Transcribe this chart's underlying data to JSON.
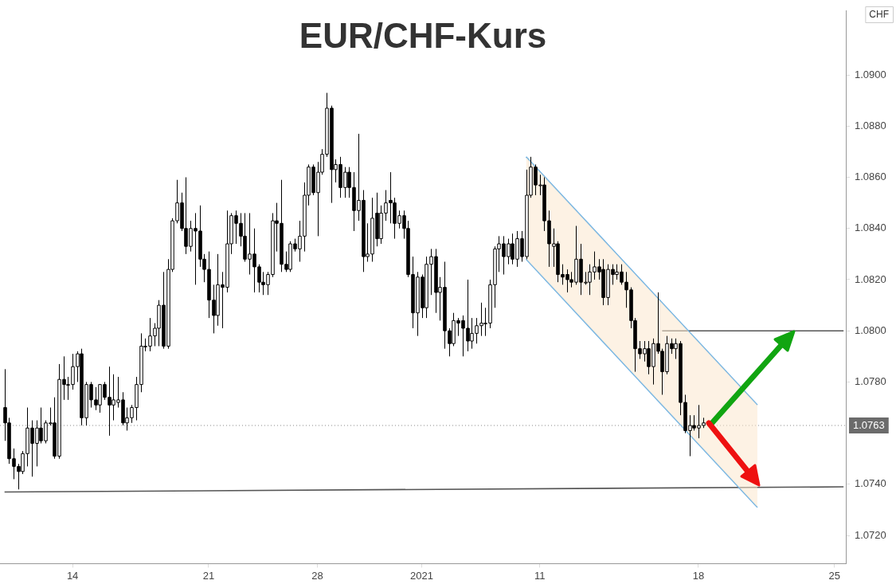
{
  "chart_data": {
    "type": "candlestick",
    "title": "EUR/CHF-Kurs",
    "categories": [
      null,
      null,
      null,
      null,
      null,
      null,
      null,
      null,
      null,
      null,
      null,
      null,
      null,
      null,
      null,
      "14",
      null,
      null,
      null,
      null,
      null,
      null,
      null,
      null,
      null,
      null,
      null,
      null,
      null,
      null,
      null,
      null,
      null,
      null,
      null,
      null,
      null,
      null,
      null,
      null,
      null,
      null,
      null,
      null,
      null,
      "21",
      null,
      null,
      null,
      null,
      null,
      null,
      null,
      null,
      null,
      null,
      null,
      null,
      null,
      null,
      null,
      null,
      null,
      null,
      null,
      null,
      null,
      null,
      null,
      "28",
      null,
      null,
      null,
      null,
      null,
      null,
      null,
      null,
      null,
      null,
      null,
      null,
      null,
      null,
      null,
      null,
      null,
      null,
      null,
      null,
      null,
      null,
      "2021",
      null,
      null,
      null,
      null,
      null,
      null,
      null,
      null,
      null,
      null,
      null,
      null,
      null,
      null,
      null,
      null,
      null,
      null,
      null,
      null,
      null,
      null,
      null,
      null,
      null,
      "11",
      null,
      null,
      null,
      null,
      null,
      null,
      null,
      null,
      null,
      null,
      null,
      null,
      null,
      null,
      null,
      null,
      null,
      null,
      null,
      null,
      null,
      null,
      null,
      null,
      null,
      null,
      null,
      null,
      null,
      null,
      null,
      null,
      null,
      null,
      "18",
      null,
      null,
      null,
      null,
      null,
      null,
      null,
      null,
      null,
      null,
      null,
      null,
      null,
      null,
      null,
      null,
      null,
      null,
      null,
      null,
      null,
      null,
      null,
      null,
      null,
      null,
      null,
      null,
      null,
      "25",
      null,
      null
    ],
    "ohlc": [
      [
        1.077,
        1.0785,
        1.0757,
        1.0764
      ],
      [
        1.0764,
        1.0766,
        1.0748,
        1.075
      ],
      [
        1.075,
        1.0754,
        1.0742,
        1.0747
      ],
      [
        1.0747,
        1.0748,
        1.0738,
        1.0745
      ],
      [
        1.0745,
        1.0753,
        1.0744,
        1.0752
      ],
      [
        1.0752,
        1.077,
        1.0747,
        1.0762
      ],
      [
        1.0762,
        1.0765,
        1.0743,
        1.0756
      ],
      [
        1.0756,
        1.0765,
        1.0747,
        1.0762
      ],
      [
        1.0762,
        1.077,
        1.0756,
        1.0757
      ],
      [
        1.0757,
        1.0765,
        1.0756,
        1.0764
      ],
      [
        1.0764,
        1.077,
        1.0763,
        1.0764
      ],
      [
        1.0764,
        1.0774,
        1.075,
        1.0751
      ],
      [
        1.0751,
        1.0787,
        1.075,
        1.0781
      ],
      [
        1.0781,
        1.079,
        1.0773,
        1.0779
      ],
      [
        1.0779,
        1.0782,
        1.0773,
        1.0779
      ],
      [
        1.0779,
        1.0791,
        1.0777,
        1.0786
      ],
      [
        1.0786,
        1.0792,
        1.078,
        1.0791
      ],
      [
        1.0791,
        1.0793,
        1.0763,
        1.0766
      ],
      [
        1.0766,
        1.078,
        1.0763,
        1.0779
      ],
      [
        1.0779,
        1.078,
        1.077,
        1.0773
      ],
      [
        1.0773,
        1.0778,
        1.0769,
        1.0771
      ],
      [
        1.0771,
        1.0779,
        1.0768,
        1.0779
      ],
      [
        1.0779,
        1.078,
        1.0773,
        1.0774
      ],
      [
        1.0774,
        1.0786,
        1.0759,
        1.0771
      ],
      [
        1.0771,
        1.0783,
        1.0765,
        1.0773
      ],
      [
        1.0772,
        1.0782,
        1.077,
        1.0773
      ],
      [
        1.0773,
        1.0776,
        1.0763,
        1.0764
      ],
      [
        1.0764,
        1.077,
        1.0761,
        1.0766
      ],
      [
        1.0766,
        1.0771,
        1.0764,
        1.077
      ],
      [
        1.077,
        1.0782,
        1.0765,
        1.0779
      ],
      [
        1.0779,
        1.0799,
        1.0776,
        1.0794
      ],
      [
        1.0794,
        1.0797,
        1.0792,
        1.0794
      ],
      [
        1.0794,
        1.0805,
        1.0792,
        1.0798
      ],
      [
        1.0798,
        1.0803,
        1.0794,
        1.0801
      ],
      [
        1.0801,
        1.0812,
        1.0794,
        1.081
      ],
      [
        1.081,
        1.0823,
        1.0793,
        1.0794
      ],
      [
        1.0794,
        1.0828,
        1.0793,
        1.0824
      ],
      [
        1.0824,
        1.0844,
        1.0823,
        1.0843
      ],
      [
        1.0843,
        1.0859,
        1.0842,
        1.085
      ],
      [
        1.085,
        1.0854,
        1.0839,
        1.084
      ],
      [
        1.084,
        1.086,
        1.083,
        1.0833
      ],
      [
        1.0833,
        1.0843,
        1.0831,
        1.084
      ],
      [
        1.084,
        1.0846,
        1.0818,
        1.0839
      ],
      [
        1.0839,
        1.0849,
        1.0825,
        1.0828
      ],
      [
        1.0828,
        1.083,
        1.0819,
        1.0824
      ],
      [
        1.0824,
        1.0831,
        1.0805,
        1.0812
      ],
      [
        1.0812,
        1.0818,
        1.0799,
        1.0806
      ],
      [
        1.0806,
        1.083,
        1.0802,
        1.0818
      ],
      [
        1.0818,
        1.0823,
        1.0801,
        1.0817
      ],
      [
        1.0817,
        1.0847,
        1.0815,
        1.0834
      ],
      [
        1.0834,
        1.0846,
        1.083,
        1.0845
      ],
      [
        1.0845,
        1.0847,
        1.0834,
        1.0842
      ],
      [
        1.0842,
        1.0846,
        1.0833,
        1.0837
      ],
      [
        1.0837,
        1.0846,
        1.0827,
        1.0828
      ],
      [
        1.0828,
        1.0846,
        1.0822,
        1.083
      ],
      [
        1.083,
        1.084,
        1.0815,
        1.0825
      ],
      [
        1.0825,
        1.0826,
        1.0815,
        1.0819
      ],
      [
        1.0819,
        1.0823,
        1.0814,
        1.0818
      ],
      [
        1.0818,
        1.0823,
        1.0814,
        1.0822
      ],
      [
        1.0822,
        1.0846,
        1.0821,
        1.0843
      ],
      [
        1.0843,
        1.085,
        1.0831,
        1.0842
      ],
      [
        1.0842,
        1.0859,
        1.0823,
        1.0826
      ],
      [
        1.0826,
        1.0831,
        1.0823,
        1.0824
      ],
      [
        1.0824,
        1.0835,
        1.0823,
        1.0834
      ],
      [
        1.0834,
        1.0836,
        1.0831,
        1.0832
      ],
      [
        1.0832,
        1.0843,
        1.0827,
        1.0837
      ],
      [
        1.0837,
        1.0858,
        1.0831,
        1.0853
      ],
      [
        1.0853,
        1.0865,
        1.0849,
        1.0864
      ],
      [
        1.0864,
        1.0865,
        1.0853,
        1.0854
      ],
      [
        1.0854,
        1.0866,
        1.0837,
        1.0862
      ],
      [
        1.0862,
        1.0871,
        1.0861,
        1.0869
      ],
      [
        1.0869,
        1.0893,
        1.0868,
        1.0887
      ],
      [
        1.0887,
        1.0888,
        1.085,
        1.0863
      ],
      [
        1.0863,
        1.0867,
        1.0858,
        1.0865
      ],
      [
        1.0865,
        1.0868,
        1.0852,
        1.0856
      ],
      [
        1.0856,
        1.0864,
        1.0852,
        1.0862
      ],
      [
        1.0862,
        1.0864,
        1.0852,
        1.0856
      ],
      [
        1.0856,
        1.0862,
        1.0839,
        1.0847
      ],
      [
        1.0847,
        1.0877,
        1.0843,
        1.0851
      ],
      [
        1.0851,
        1.0855,
        1.0823,
        1.0829
      ],
      [
        1.0829,
        1.0842,
        1.0827,
        1.083
      ],
      [
        1.083,
        1.0852,
        1.0827,
        1.0844
      ],
      [
        1.0846,
        1.0854,
        1.0833,
        1.0836
      ],
      [
        1.0836,
        1.0849,
        1.0834,
        1.0846
      ],
      [
        1.0846,
        1.0855,
        1.0843,
        1.085
      ],
      [
        1.0851,
        1.0862,
        1.0842,
        1.085
      ],
      [
        1.085,
        1.0852,
        1.0836,
        1.0842
      ],
      [
        1.0842,
        1.0847,
        1.084,
        1.0845
      ],
      [
        1.0845,
        1.0847,
        1.0836,
        1.084
      ],
      [
        1.084,
        1.0843,
        1.0821,
        1.0822
      ],
      [
        1.0822,
        1.0829,
        1.0801,
        1.0807
      ],
      [
        1.0807,
        1.0823,
        1.0798,
        1.0821
      ],
      [
        1.0821,
        1.0822,
        1.0805,
        1.0809
      ],
      [
        1.0809,
        1.0829,
        1.0805,
        1.0826
      ],
      [
        1.0826,
        1.0832,
        1.0814,
        1.0829
      ],
      [
        1.0829,
        1.0832,
        1.0807,
        1.0815
      ],
      [
        1.0815,
        1.0821,
        1.0804,
        1.0817
      ],
      [
        1.0817,
        1.0827,
        1.0793,
        1.08
      ],
      [
        1.08,
        1.0801,
        1.079,
        1.0795
      ],
      [
        1.0795,
        1.0807,
        1.0794,
        1.0804
      ],
      [
        1.0804,
        1.0805,
        1.0798,
        1.0803
      ],
      [
        1.0804,
        1.0806,
        1.079,
        1.0801
      ],
      [
        1.0801,
        1.082,
        1.0792,
        1.0796
      ],
      [
        1.0796,
        1.0805,
        1.0793,
        1.0799
      ],
      [
        1.0799,
        1.0805,
        1.0795,
        1.0802
      ],
      [
        1.0802,
        1.0811,
        1.0798,
        1.0803
      ],
      [
        1.0803,
        1.0809,
        1.0798,
        1.0803
      ],
      [
        1.0803,
        1.082,
        1.0801,
        1.0818
      ],
      [
        1.0818,
        1.0833,
        1.0809,
        1.0832
      ],
      [
        1.0832,
        1.0837,
        1.0823,
        1.0834
      ],
      [
        1.0834,
        1.0837,
        1.0822,
        1.0829
      ],
      [
        1.0829,
        1.0836,
        1.0826,
        1.0834
      ],
      [
        1.0834,
        1.0838,
        1.0826,
        1.0828
      ],
      [
        1.0828,
        1.0839,
        1.0825,
        1.0836
      ],
      [
        1.0836,
        1.0839,
        1.0827,
        1.0829
      ],
      [
        1.0829,
        1.0863,
        1.0828,
        1.0853
      ],
      [
        1.0853,
        1.0868,
        1.0852,
        1.0864
      ],
      [
        1.0864,
        1.0865,
        1.0853,
        1.0857
      ],
      [
        1.0857,
        1.0861,
        1.0853,
        1.0857
      ],
      [
        1.0857,
        1.086,
        1.0839,
        1.0843
      ],
      [
        1.0843,
        1.0847,
        1.0825,
        1.0834
      ],
      [
        1.0833,
        1.084,
        1.0825,
        1.0834
      ],
      [
        1.0834,
        1.0835,
        1.0819,
        1.0822
      ],
      [
        1.0822,
        1.0826,
        1.0818,
        1.0821
      ],
      [
        1.0822,
        1.0824,
        1.0815,
        1.082
      ],
      [
        1.082,
        1.0823,
        1.0817,
        1.0819
      ],
      [
        1.0819,
        1.0841,
        1.0818,
        1.0828
      ],
      [
        1.0828,
        1.0834,
        1.0814,
        1.0819
      ],
      [
        1.0819,
        1.0823,
        1.0818,
        1.0819
      ],
      [
        1.0819,
        1.0826,
        1.0814,
        1.0823
      ],
      [
        1.0823,
        1.0831,
        1.082,
        1.0825
      ],
      [
        1.0825,
        1.0828,
        1.082,
        1.0823
      ],
      [
        1.0824,
        1.0828,
        1.081,
        1.0813
      ],
      [
        1.0813,
        1.0826,
        1.081,
        1.0824
      ],
      [
        1.0824,
        1.0826,
        1.0818,
        1.0822
      ],
      [
        1.0822,
        1.0826,
        1.082,
        1.0823
      ],
      [
        1.0823,
        1.0826,
        1.0818,
        1.0819
      ],
      [
        1.0819,
        1.0823,
        1.0809,
        1.0816
      ],
      [
        1.0816,
        1.0817,
        1.0801,
        1.0804
      ],
      [
        1.0804,
        1.0805,
        1.0784,
        1.0793
      ],
      [
        1.0793,
        1.0796,
        1.0789,
        1.0791
      ],
      [
        1.0791,
        1.0796,
        1.0788,
        1.0793
      ],
      [
        1.0793,
        1.0796,
        1.0783,
        1.0786
      ],
      [
        1.0786,
        1.0797,
        1.0779,
        1.0795
      ],
      [
        1.0795,
        1.0815,
        1.0791,
        1.0792
      ],
      [
        1.0792,
        1.0793,
        1.0775,
        1.0784
      ],
      [
        1.0784,
        1.0798,
        1.0783,
        1.0795
      ],
      [
        1.0795,
        1.0797,
        1.0791,
        1.0793
      ],
      [
        1.0793,
        1.0797,
        1.0789,
        1.0795
      ],
      [
        1.0795,
        1.0796,
        1.0767,
        1.0772
      ],
      [
        1.0772,
        1.0775,
        1.076,
        1.0761
      ],
      [
        1.0761,
        1.0767,
        1.0751,
        1.0763
      ],
      [
        1.0763,
        1.0767,
        1.0761,
        1.0762
      ],
      [
        1.0762,
        1.0771,
        1.0758,
        1.0763
      ],
      [
        1.0763,
        1.0766,
        1.0762,
        1.0764
      ],
      null,
      null,
      null,
      null,
      null,
      null,
      null,
      null,
      null,
      null,
      null,
      null,
      null,
      null,
      null,
      null,
      null,
      null,
      null,
      null,
      null,
      null,
      null,
      null,
      null,
      null,
      null,
      null,
      null,
      null,
      null
    ],
    "series": [
      {
        "type": "line",
        "color": "#5aaae6",
        "values": [
          null,
          null,
          null,
          null,
          null,
          null,
          null,
          null,
          null,
          null,
          null,
          null,
          null,
          null,
          null,
          null,
          null,
          null,
          null,
          null,
          null,
          null,
          null,
          null,
          null,
          null,
          null,
          null,
          null,
          null,
          null,
          null,
          null,
          null,
          null,
          null,
          null,
          null,
          null,
          null,
          null,
          null,
          null,
          null,
          null,
          null,
          null,
          null,
          null,
          null,
          null,
          null,
          null,
          null,
          null,
          null,
          null,
          null,
          null,
          null,
          null,
          null,
          null,
          null,
          null,
          null,
          null,
          null,
          null,
          null,
          null,
          null,
          null,
          null,
          null,
          null,
          null,
          null,
          null,
          null,
          null,
          null,
          null,
          null,
          null,
          null,
          null,
          null,
          null,
          null,
          null,
          null,
          null,
          null,
          null,
          null,
          null,
          null,
          null,
          null,
          null,
          null,
          null,
          null,
          null,
          null,
          null,
          null,
          null,
          null,
          null,
          null,
          null,
          null,
          null,
          1.0868,
          null,
          null,
          null,
          null,
          null,
          null,
          null,
          null,
          null,
          null,
          null,
          null,
          null,
          null,
          null,
          null,
          null,
          null,
          null,
          null,
          null,
          null,
          null,
          null,
          null,
          null,
          null,
          null,
          null,
          null,
          null,
          null,
          null,
          null,
          null,
          null,
          null,
          null,
          null,
          null,
          null,
          null,
          null,
          null,
          null,
          null,
          null,
          null,
          null,
          null,
          1.0771,
          null,
          null,
          null,
          null,
          null,
          null,
          null,
          null,
          null,
          null,
          null,
          null,
          null,
          null,
          null,
          null,
          null,
          null,
          null
        ],
        "lower": [
          null,
          null,
          null,
          null,
          null,
          null,
          null,
          null,
          null,
          null,
          null,
          null,
          null,
          null,
          null,
          null,
          null,
          null,
          null,
          null,
          null,
          null,
          null,
          null,
          null,
          null,
          null,
          null,
          null,
          null,
          null,
          null,
          null,
          null,
          null,
          null,
          null,
          null,
          null,
          null,
          null,
          null,
          null,
          null,
          null,
          null,
          null,
          null,
          null,
          null,
          null,
          null,
          null,
          null,
          null,
          null,
          null,
          null,
          null,
          null,
          null,
          null,
          null,
          null,
          null,
          null,
          null,
          null,
          null,
          null,
          null,
          null,
          null,
          null,
          null,
          null,
          null,
          null,
          null,
          null,
          null,
          null,
          null,
          null,
          null,
          null,
          null,
          null,
          null,
          null,
          null,
          null,
          null,
          null,
          null,
          null,
          null,
          null,
          null,
          null,
          null,
          null,
          null,
          null,
          null,
          null,
          null,
          null,
          null,
          null,
          null,
          null,
          null,
          null,
          null,
          1.0828,
          null,
          null,
          null,
          null,
          null,
          null,
          null,
          null,
          null,
          null,
          null,
          null,
          null,
          null,
          null,
          null,
          null,
          null,
          null,
          null,
          null,
          null,
          null,
          null,
          null,
          null,
          null,
          null,
          null,
          null,
          null,
          null,
          null,
          null,
          null,
          null,
          null,
          null,
          null,
          null,
          null,
          null,
          null,
          null,
          null,
          null,
          null,
          null,
          null,
          null,
          1.0731,
          null,
          null,
          null,
          null,
          null,
          null,
          null,
          null,
          null,
          null,
          null,
          null,
          null,
          null,
          null,
          null,
          null,
          null,
          null
        ],
        "upper": [
          null,
          null,
          null,
          null,
          null,
          null,
          null,
          null,
          null,
          null,
          null,
          null,
          null,
          null,
          null,
          null,
          null,
          null,
          null,
          null,
          null,
          null,
          null,
          null,
          null,
          null,
          null,
          null,
          null,
          null,
          null,
          null,
          null,
          null,
          null,
          null,
          null,
          null,
          null,
          null,
          null,
          null,
          null,
          null,
          null,
          null,
          null,
          null,
          null,
          null,
          null,
          null,
          null,
          null,
          null,
          null,
          null,
          null,
          null,
          null,
          null,
          null,
          null,
          null,
          null,
          null,
          null,
          null,
          null,
          null,
          null,
          null,
          null,
          null,
          null,
          null,
          null,
          null,
          null,
          null,
          null,
          null,
          null,
          null,
          null,
          null,
          null,
          null,
          null,
          null,
          null,
          null,
          null,
          null,
          null,
          null,
          null,
          null,
          null,
          null,
          null,
          null,
          null,
          null,
          null,
          null,
          null,
          null,
          null,
          null,
          null,
          null,
          null,
          null,
          null,
          1.0868,
          null,
          null,
          null,
          null,
          null,
          null,
          null,
          null,
          null,
          null,
          null,
          null,
          null,
          null,
          null,
          null,
          null,
          null,
          null,
          null,
          null,
          null,
          null,
          null,
          null,
          null,
          null,
          null,
          null,
          null,
          null,
          null,
          null,
          null,
          null,
          null,
          null,
          null,
          null,
          null,
          null,
          null,
          null,
          null,
          null,
          null,
          null,
          null,
          null,
          null,
          1.0771,
          null,
          null,
          null,
          null,
          null,
          null,
          null,
          null,
          null,
          null,
          null,
          null,
          null,
          null,
          null,
          null,
          null,
          null,
          null
        ]
      },
      {
        "type": "line",
        "color": "#5aaae6",
        "values": [
          null,
          null,
          null,
          null,
          null,
          null,
          null,
          null,
          null,
          null,
          null,
          null,
          null,
          null,
          null,
          null,
          null,
          null,
          null,
          null,
          null,
          null,
          null,
          null,
          null,
          null,
          null,
          null,
          null,
          null,
          null,
          null,
          null,
          null,
          null,
          null,
          null,
          null,
          null,
          null,
          null,
          null,
          null,
          null,
          null,
          null,
          null,
          null,
          null,
          null,
          null,
          null,
          null,
          null,
          null,
          null,
          null,
          null,
          null,
          null,
          null,
          null,
          null,
          null,
          null,
          null,
          null,
          null,
          null,
          null,
          null,
          null,
          null,
          null,
          null,
          null,
          null,
          null,
          null,
          null,
          null,
          null,
          null,
          null,
          null,
          null,
          null,
          null,
          null,
          null,
          null,
          null,
          null,
          null,
          null,
          null,
          null,
          null,
          null,
          null,
          null,
          null,
          null,
          null,
          null,
          null,
          null,
          null,
          null,
          null,
          null,
          null,
          null,
          null,
          null,
          1.0828,
          null,
          null,
          null,
          null,
          null,
          null,
          null,
          null,
          null,
          null,
          null,
          null,
          null,
          null,
          null,
          null,
          null,
          null,
          null,
          null,
          null,
          null,
          null,
          null,
          null,
          null,
          null,
          null,
          null,
          null,
          null,
          null,
          null,
          null,
          null,
          null,
          null,
          null,
          null,
          null,
          null,
          null,
          null,
          null,
          null,
          null,
          null,
          null,
          null,
          null,
          1.0731,
          null,
          null,
          null,
          null,
          null,
          null,
          null,
          null,
          null,
          null,
          null,
          null,
          null,
          null,
          null,
          null,
          null,
          null,
          null
        ]
      },
      {
        "type": "line",
        "color": "#555555",
        "values": [
          1.0737,
          null,
          null,
          null,
          null,
          null,
          null,
          null,
          null,
          null,
          null,
          null,
          null,
          null,
          null,
          null,
          null,
          null,
          null,
          null,
          null,
          null,
          null,
          null,
          null,
          null,
          null,
          null,
          null,
          null,
          null,
          null,
          null,
          null,
          null,
          null,
          null,
          null,
          null,
          null,
          null,
          null,
          null,
          null,
          null,
          null,
          null,
          null,
          null,
          null,
          null,
          null,
          null,
          null,
          null,
          null,
          null,
          null,
          null,
          null,
          null,
          null,
          null,
          null,
          null,
          null,
          null,
          null,
          null,
          null,
          null,
          null,
          null,
          null,
          null,
          null,
          null,
          null,
          null,
          null,
          null,
          null,
          null,
          null,
          null,
          null,
          null,
          null,
          null,
          null,
          null,
          null,
          null,
          null,
          null,
          null,
          null,
          null,
          null,
          null,
          null,
          null,
          null,
          null,
          null,
          null,
          null,
          null,
          null,
          null,
          null,
          null,
          null,
          null,
          null,
          null,
          null,
          null,
          null,
          null,
          null,
          null,
          null,
          null,
          null,
          null,
          null,
          null,
          null,
          null,
          null,
          null,
          null,
          null,
          null,
          null,
          null,
          null,
          null,
          null,
          null,
          null,
          null,
          null,
          null,
          null,
          null,
          null,
          null,
          null,
          null,
          null,
          null,
          null,
          null,
          null,
          null,
          null,
          null,
          null,
          null,
          null,
          null,
          null,
          null,
          null,
          null,
          null,
          null,
          null,
          null,
          null,
          null,
          null,
          null,
          null,
          null,
          null,
          null,
          null,
          null,
          null,
          null,
          null,
          null,
          1.0739
        ]
      },
      {
        "type": "line",
        "color": "#555555",
        "values": [
          null,
          null,
          null,
          null,
          null,
          null,
          null,
          null,
          null,
          null,
          null,
          null,
          null,
          null,
          null,
          null,
          null,
          null,
          null,
          null,
          null,
          null,
          null,
          null,
          null,
          null,
          null,
          null,
          null,
          null,
          null,
          null,
          null,
          null,
          null,
          null,
          null,
          null,
          null,
          null,
          null,
          null,
          null,
          null,
          null,
          null,
          null,
          null,
          null,
          null,
          null,
          null,
          null,
          null,
          null,
          null,
          null,
          null,
          null,
          null,
          null,
          null,
          null,
          null,
          null,
          null,
          null,
          null,
          null,
          null,
          null,
          null,
          null,
          null,
          null,
          null,
          null,
          null,
          null,
          null,
          null,
          null,
          null,
          null,
          null,
          null,
          null,
          null,
          null,
          null,
          null,
          null,
          null,
          null,
          null,
          null,
          null,
          null,
          null,
          null,
          null,
          null,
          null,
          null,
          null,
          null,
          null,
          null,
          null,
          null,
          null,
          null,
          null,
          null,
          null,
          null,
          null,
          null,
          null,
          null,
          null,
          null,
          null,
          null,
          null,
          null,
          null,
          null,
          null,
          null,
          null,
          null,
          null,
          null,
          null,
          null,
          null,
          null,
          null,
          null,
          null,
          null,
          null,
          null,
          null,
          1.08,
          null,
          null,
          null,
          null,
          null,
          null,
          null,
          null,
          null,
          null,
          null,
          null,
          null,
          null,
          null,
          null,
          null,
          null,
          null,
          null,
          null,
          null,
          null,
          null,
          null,
          null,
          null,
          null,
          null,
          null,
          null,
          null,
          null,
          null,
          null,
          null,
          null,
          null,
          null,
          1.08
        ]
      }
    ],
    "ylim": [
      1.0709,
      1.0925
    ],
    "yticks": [
      {
        "value": 1.072,
        "label": "1.0720"
      },
      {
        "value": 1.074,
        "label": "1.0740"
      },
      {
        "value": 1.078,
        "label": "1.0780"
      },
      {
        "value": 1.08,
        "label": "1.0800"
      },
      {
        "value": 1.082,
        "label": "1.0820"
      },
      {
        "value": 1.084,
        "label": "1.0840"
      },
      {
        "value": 1.086,
        "label": "1.0860"
      },
      {
        "value": 1.088,
        "label": "1.0880"
      },
      {
        "value": 1.09,
        "label": "1.0900"
      }
    ],
    "ref_lines": [
      {
        "axis": "y",
        "value": 1.0763,
        "label": "1.0763",
        "color": "#888888",
        "line_style": "dotted"
      }
    ],
    "annotations": [
      "CHF"
    ],
    "grid": false,
    "legend": false
  }
}
